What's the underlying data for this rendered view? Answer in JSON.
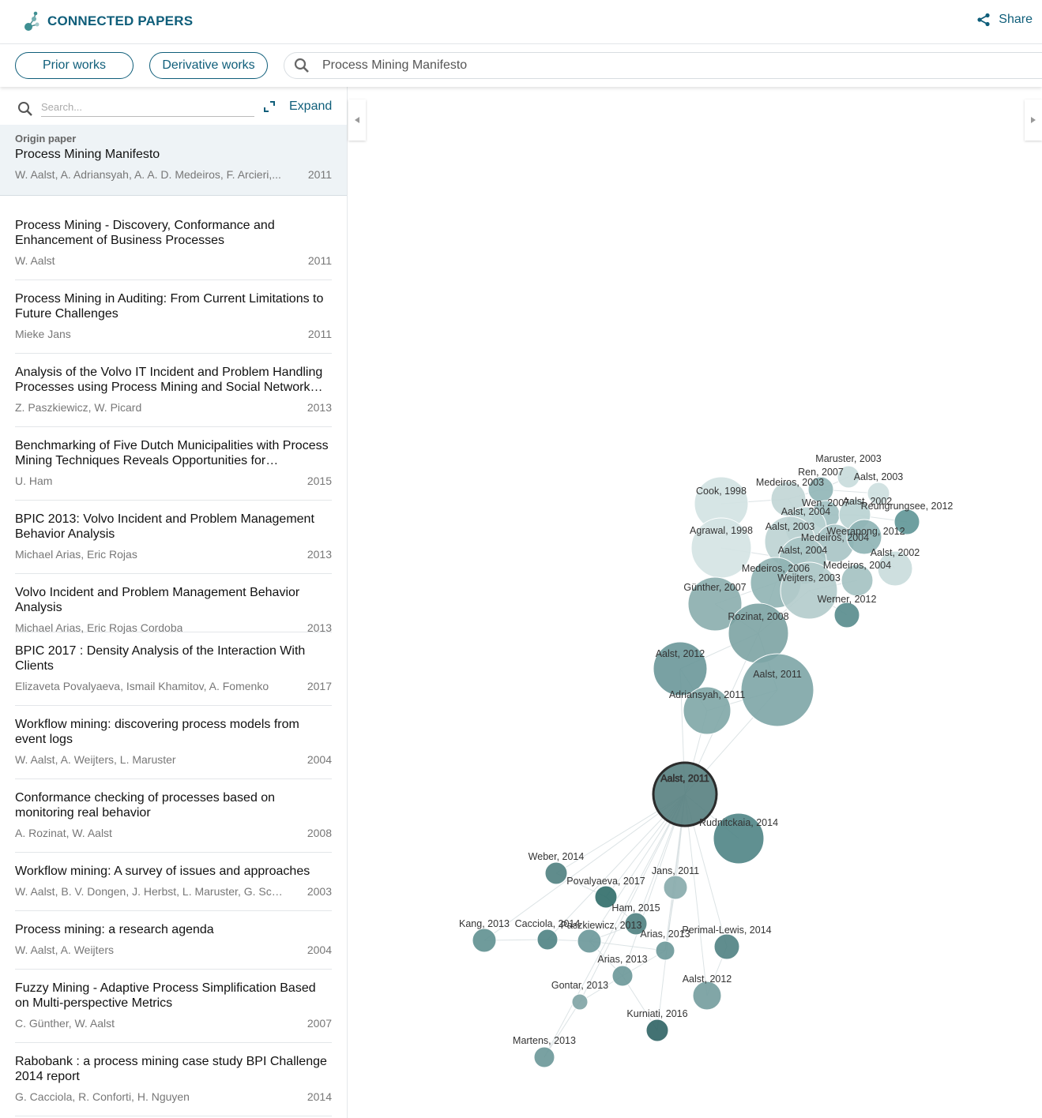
{
  "header": {
    "brand": "CONNECTED PAPERS",
    "share_label": "Share"
  },
  "toolbar": {
    "prior_works": "Prior works",
    "derivative_works": "Derivative works",
    "search_value": "Process Mining Manifesto"
  },
  "sidebar": {
    "search_placeholder": "Search...",
    "expand_label": "Expand",
    "origin": {
      "label": "Origin paper",
      "title": "Process Mining Manifesto",
      "authors": "W. Aalst, A. Adriansyah, A. A. D. Medeiros, F. Arcieri,...",
      "year": "2011"
    },
    "items": [
      {
        "title": "Process Mining - Discovery, Conformance and Enhancement of Business Processes",
        "authors": "W. Aalst",
        "year": "2011"
      },
      {
        "title": "Process Mining in Auditing: From Current Limitations to Future Challenges",
        "authors": "Mieke Jans",
        "year": "2011"
      },
      {
        "title": "Analysis of the Volvo IT Incident and Problem Handling Processes using Process Mining and Social Network…",
        "authors": "Z. Paszkiewicz, W. Picard",
        "year": "2013"
      },
      {
        "title": "Benchmarking of Five Dutch Municipalities with Process Mining Techniques Reveals Opportunities for…",
        "authors": "U. Ham",
        "year": "2015"
      },
      {
        "title": "BPIC 2013: Volvo Incident and Problem Management Behavior Analysis",
        "authors": "Michael Arias, Eric Rojas",
        "year": "2013"
      },
      {
        "title": "Volvo Incident and Problem Management Behavior Analysis",
        "authors": "Michael Arias, Eric Rojas Cordoba",
        "year": "2013"
      },
      {
        "title": "BPIC 2017 : Density Analysis of the Interaction With Clients",
        "authors": "Elizaveta Povalyaeva, Ismail Khamitov, A. Fomenko",
        "year": "2017"
      },
      {
        "title": "Workflow mining: discovering process models from event logs",
        "authors": "W. Aalst, A. Weijters, L. Maruster",
        "year": "2004"
      },
      {
        "title": "Conformance checking of processes based on monitoring real behavior",
        "authors": "A. Rozinat, W. Aalst",
        "year": "2008"
      },
      {
        "title": "Workflow mining: A survey of issues and approaches",
        "authors": "W. Aalst, B. V. Dongen, J. Herbst, L. Maruster, G. Schimm, …",
        "year": "2003"
      },
      {
        "title": "Process mining: a research agenda",
        "authors": "W. Aalst, A. Weijters",
        "year": "2004"
      },
      {
        "title": "Fuzzy Mining - Adaptive Process Simplification Based on Multi-perspective Metrics",
        "authors": "C. Günther, W. Aalst",
        "year": "2007"
      },
      {
        "title": "Rabobank : a process mining case study BPI Challenge 2014 report",
        "authors": "G. Cacciola, R. Conforti, H. Nguyen",
        "year": "2014"
      }
    ]
  },
  "graph": {
    "nodes": [
      {
        "label": "Maruster, 2003"
      },
      {
        "label": "Ren, 2007"
      },
      {
        "label": "Aalst, 2003"
      },
      {
        "label": "Medeiros, 2003"
      },
      {
        "label": "Cook, 1998"
      },
      {
        "label": "Wen, 2007"
      },
      {
        "label": "Aalst, 2002"
      },
      {
        "label": "Reungrungsee, 2012"
      },
      {
        "label": "Aalst, 2004"
      },
      {
        "label": "Agrawal, 1998"
      },
      {
        "label": "Aalst, 2003"
      },
      {
        "label": "Medeiros, 2004"
      },
      {
        "label": "Weerapong, 2012"
      },
      {
        "label": "Aalst, 2004"
      },
      {
        "label": "Aalst, 2002"
      },
      {
        "label": "Medeiros, 2006"
      },
      {
        "label": "Medeiros, 2004"
      },
      {
        "label": "Weijters, 2003"
      },
      {
        "label": "Günther, 2007"
      },
      {
        "label": "Werner, 2012"
      },
      {
        "label": "Rozinat, 2008"
      },
      {
        "label": "Aalst, 2012"
      },
      {
        "label": "Aalst, 2011"
      },
      {
        "label": "Adriansyah, 2011"
      },
      {
        "label": "Aalst, 2011"
      },
      {
        "label": "Rudnitckaia, 2014"
      },
      {
        "label": "Weber, 2014"
      },
      {
        "label": "Jans, 2011"
      },
      {
        "label": "Povalyaeva, 2017"
      },
      {
        "label": "Ham, 2015"
      },
      {
        "label": "Kang, 2013"
      },
      {
        "label": "Cacciola, 2014"
      },
      {
        "label": "Paszkiewicz, 2013"
      },
      {
        "label": "Arias, 2013"
      },
      {
        "label": "Perimal-Lewis, 2014"
      },
      {
        "label": "Arias, 2013"
      },
      {
        "label": "Gontar, 2013"
      },
      {
        "label": "Aalst, 2012"
      },
      {
        "label": "Kurniati, 2016"
      },
      {
        "label": "Martens, 2013"
      }
    ]
  }
}
